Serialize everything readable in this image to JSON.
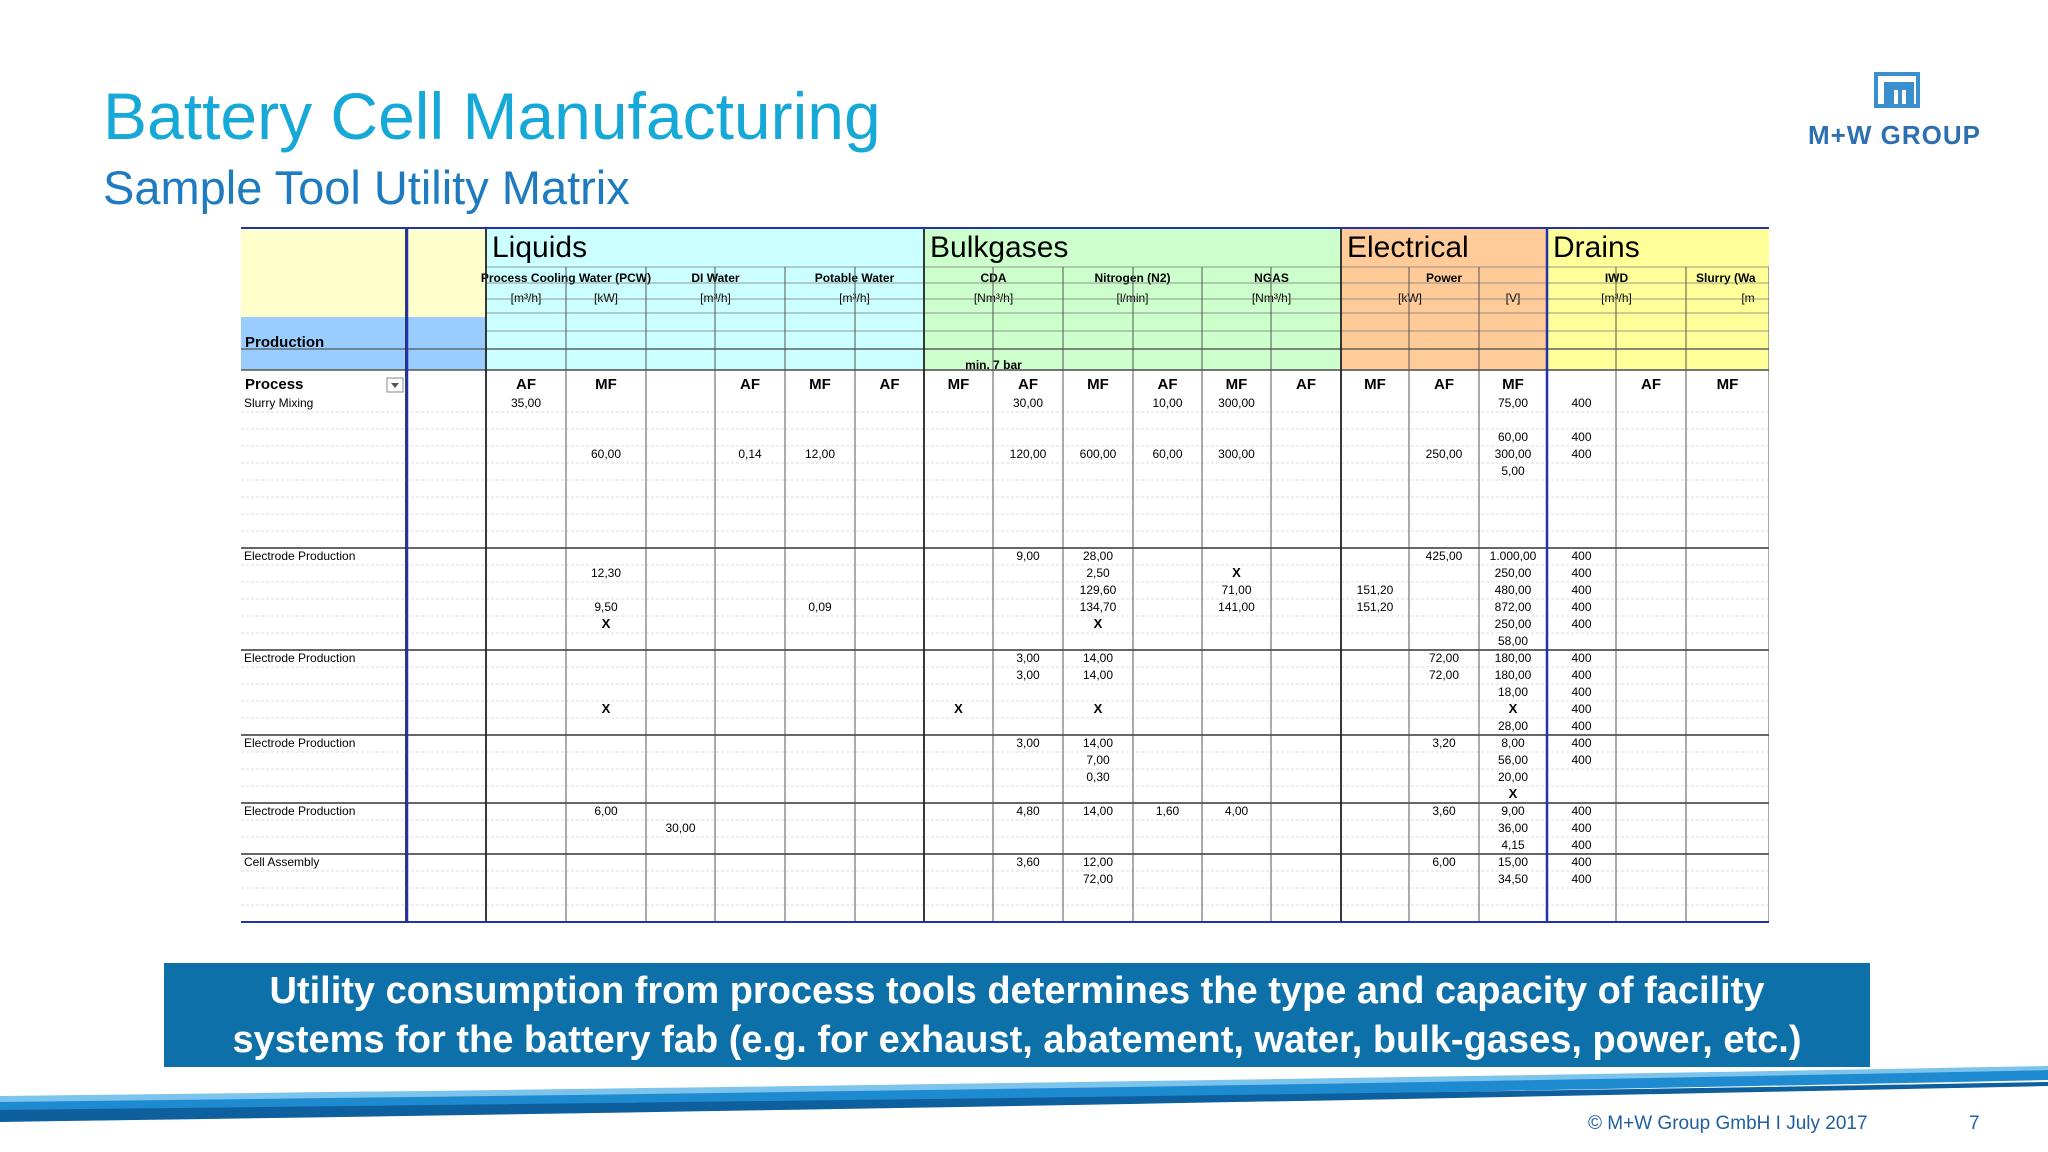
{
  "slide": {
    "title": "Battery Cell Manufacturing",
    "subtitle": "Sample Tool Utility Matrix",
    "logo_text": "M+W GROUP",
    "banner_line1": "Utility consumption from process tools determines the type and capacity of facility",
    "banner_line2": "systems for the battery fab (e.g. for exhaust, abatement, water, bulk-gases, power, etc.)",
    "footer": "© M+W Group GmbH I July 2017",
    "page": "7"
  },
  "colors": {
    "liquids": "#ccffff",
    "bulkgases": "#ccffcc",
    "electrical": "#ffcc99",
    "drains": "#ffff99",
    "corner": "#ffffcc",
    "process_label": "#99ccff"
  },
  "matrix": {
    "groups": [
      {
        "label": "Liquids",
        "start": 0,
        "end": 6,
        "color": "liquids"
      },
      {
        "label": "Bulkgases",
        "start": 6,
        "end": 12,
        "color": "bulkgases"
      },
      {
        "label": "Electrical",
        "start": 12,
        "end": 15,
        "color": "electrical"
      },
      {
        "label": "Drains",
        "start": 15,
        "end": 18,
        "color": "drains"
      }
    ],
    "subgroups": [
      {
        "label": "Process Cooling Water (PCW)",
        "start": 0,
        "end": 2
      },
      {
        "label": "DI Water",
        "start": 2,
        "end": 4
      },
      {
        "label": "Potable Water",
        "start": 4,
        "end": 6
      },
      {
        "label": "CDA",
        "start": 6,
        "end": 8
      },
      {
        "label": "Nitrogen (N2)",
        "start": 8,
        "end": 10
      },
      {
        "label": "NGAS",
        "start": 10,
        "end": 12
      },
      {
        "label": "Power",
        "start": 12,
        "end": 15
      },
      {
        "label": "IWD",
        "start": 15,
        "end": 17
      },
      {
        "label": "Slurry (Wa",
        "start": 17,
        "end": 18
      }
    ],
    "units": [
      {
        "label": "[m³/h]",
        "start": 0,
        "end": 1
      },
      {
        "label": "[kW]",
        "start": 1,
        "end": 2
      },
      {
        "label": "[m³/h]",
        "start": 2,
        "end": 4
      },
      {
        "label": "[m³/h]",
        "start": 4,
        "end": 6
      },
      {
        "label": "[Nm³/h]",
        "start": 6,
        "end": 8
      },
      {
        "label": "[l/min]",
        "start": 8,
        "end": 10
      },
      {
        "label": "[Nm³/h]",
        "start": 10,
        "end": 12
      },
      {
        "label": "[kW]",
        "start": 12,
        "end": 14
      },
      {
        "label": "[V]",
        "start": 14,
        "end": 15
      },
      {
        "label": "[m³/h]",
        "start": 15,
        "end": 17
      },
      {
        "label": "[m",
        "start": 17,
        "end": 18
      }
    ],
    "production_label": "Production",
    "process_label": "Process",
    "note": {
      "label": "min. 7 bar",
      "start": 6,
      "end": 8
    },
    "column_labels": [
      "AF",
      "MF",
      "",
      "AF",
      "MF",
      "AF",
      "MF",
      "AF",
      "MF",
      "AF",
      "MF",
      "AF",
      "MF",
      "AF",
      "MF",
      "",
      "AF",
      "MF",
      "AF"
    ],
    "rows": [
      {
        "process": "Slurry Mixing",
        "cells": [
          "35,00",
          "",
          "",
          "",
          "",
          "",
          "",
          "30,00",
          "",
          "10,00",
          "300,00",
          "",
          "",
          "",
          "75,00",
          "400",
          "",
          "",
          ""
        ]
      },
      {
        "process": "",
        "cells": [
          "",
          "",
          "",
          "",
          "",
          "",
          "",
          "",
          "",
          "",
          "",
          "",
          "",
          "",
          "",
          "",
          "",
          "",
          ""
        ]
      },
      {
        "process": "",
        "cells": [
          "",
          "",
          "",
          "",
          "",
          "",
          "",
          "",
          "",
          "",
          "",
          "",
          "",
          "",
          "60,00",
          "400",
          "",
          "",
          ""
        ]
      },
      {
        "process": "",
        "cells": [
          "",
          "60,00",
          "",
          "0,14",
          "12,00",
          "",
          "",
          "120,00",
          "600,00",
          "60,00",
          "300,00",
          "",
          "",
          "250,00",
          "300,00",
          "400",
          "",
          "",
          ""
        ]
      },
      {
        "process": "",
        "cells": [
          "",
          "",
          "",
          "",
          "",
          "",
          "",
          "",
          "",
          "",
          "",
          "",
          "",
          "",
          "5,00",
          "",
          "",
          "",
          ""
        ]
      },
      {
        "process": "",
        "cells": [
          "",
          "",
          "",
          "",
          "",
          "",
          "",
          "",
          "",
          "",
          "",
          "",
          "",
          "",
          "",
          "",
          "",
          "",
          ""
        ]
      },
      {
        "process": "",
        "cells": [
          "",
          "",
          "",
          "",
          "",
          "",
          "",
          "",
          "",
          "",
          "",
          "",
          "",
          "",
          "",
          "",
          "",
          "",
          ""
        ]
      },
      {
        "process": "",
        "cells": [
          "",
          "",
          "",
          "",
          "",
          "",
          "",
          "",
          "",
          "",
          "",
          "",
          "",
          "",
          "",
          "",
          "",
          "",
          ""
        ]
      },
      {
        "process": "",
        "cells": [
          "",
          "",
          "",
          "",
          "",
          "",
          "",
          "",
          "",
          "",
          "",
          "",
          "",
          "",
          "",
          "",
          "",
          "",
          ""
        ]
      },
      {
        "process": "Electrode Production",
        "cells": [
          "",
          "",
          "",
          "",
          "",
          "",
          "",
          "9,00",
          "28,00",
          "",
          "",
          "",
          "",
          "425,00",
          "1.000,00",
          "400",
          "",
          "",
          ""
        ]
      },
      {
        "process": "",
        "cells": [
          "",
          "12,30",
          "",
          "",
          "",
          "",
          "",
          "",
          "2,50",
          "",
          "X",
          "",
          "",
          "",
          "250,00",
          "400",
          "",
          "",
          ""
        ]
      },
      {
        "process": "",
        "cells": [
          "",
          "",
          "",
          "",
          "",
          "",
          "",
          "",
          "129,60",
          "",
          "71,00",
          "",
          "151,20",
          "",
          "480,00",
          "400",
          "",
          "",
          ""
        ]
      },
      {
        "process": "",
        "cells": [
          "",
          "9,50",
          "",
          "",
          "0,09",
          "",
          "",
          "",
          "134,70",
          "",
          "141,00",
          "",
          "151,20",
          "",
          "872,00",
          "400",
          "",
          "",
          ""
        ]
      },
      {
        "process": "",
        "cells": [
          "",
          "X",
          "",
          "",
          "",
          "",
          "",
          "",
          "X",
          "",
          "",
          "",
          "",
          "",
          "250,00",
          "400",
          "",
          "",
          ""
        ]
      },
      {
        "process": "",
        "cells": [
          "",
          "",
          "",
          "",
          "",
          "",
          "",
          "",
          "",
          "",
          "",
          "",
          "",
          "",
          "58,00",
          "",
          "",
          "",
          ""
        ]
      },
      {
        "process": "Electrode Production",
        "cells": [
          "",
          "",
          "",
          "",
          "",
          "",
          "",
          "3,00",
          "14,00",
          "",
          "",
          "",
          "",
          "72,00",
          "180,00",
          "400",
          "",
          "",
          ""
        ]
      },
      {
        "process": "",
        "cells": [
          "",
          "",
          "",
          "",
          "",
          "",
          "",
          "3,00",
          "14,00",
          "",
          "",
          "",
          "",
          "72,00",
          "180,00",
          "400",
          "",
          "",
          ""
        ]
      },
      {
        "process": "",
        "cells": [
          "",
          "",
          "",
          "",
          "",
          "",
          "",
          "",
          "",
          "",
          "",
          "",
          "",
          "",
          "18,00",
          "400",
          "",
          "",
          ""
        ]
      },
      {
        "process": "",
        "cells": [
          "",
          "X",
          "",
          "",
          "",
          "",
          "X",
          "",
          "X",
          "",
          "",
          "",
          "",
          "",
          "X",
          "400",
          "",
          "",
          ""
        ]
      },
      {
        "process": "",
        "cells": [
          "",
          "",
          "",
          "",
          "",
          "",
          "",
          "",
          "",
          "",
          "",
          "",
          "",
          "",
          "28,00",
          "400",
          "",
          "",
          ""
        ]
      },
      {
        "process": "Electrode Production",
        "cells": [
          "",
          "",
          "",
          "",
          "",
          "",
          "",
          "3,00",
          "14,00",
          "",
          "",
          "",
          "",
          "3,20",
          "8,00",
          "400",
          "",
          "",
          ""
        ]
      },
      {
        "process": "",
        "cells": [
          "",
          "",
          "",
          "",
          "",
          "",
          "",
          "",
          "7,00",
          "",
          "",
          "",
          "",
          "",
          "56,00",
          "400",
          "",
          "",
          ""
        ]
      },
      {
        "process": "",
        "cells": [
          "",
          "",
          "",
          "",
          "",
          "",
          "",
          "",
          "0,30",
          "",
          "",
          "",
          "",
          "",
          "20,00",
          "",
          "",
          "",
          ""
        ]
      },
      {
        "process": "",
        "cells": [
          "",
          "",
          "",
          "",
          "",
          "",
          "",
          "",
          "",
          "",
          "",
          "",
          "",
          "",
          "X",
          "",
          "",
          "",
          ""
        ]
      },
      {
        "process": "Electrode Production",
        "cells": [
          "",
          "6,00",
          "",
          "",
          "",
          "",
          "",
          "4,80",
          "14,00",
          "1,60",
          "4,00",
          "",
          "",
          "3,60",
          "9,00",
          "400",
          "",
          "",
          ""
        ]
      },
      {
        "process": "",
        "cells": [
          "",
          "",
          "30,00",
          "",
          "",
          "",
          "",
          "",
          "",
          "",
          "",
          "",
          "",
          "",
          "36,00",
          "400",
          "",
          "",
          ""
        ]
      },
      {
        "process": "",
        "cells": [
          "",
          "",
          "",
          "",
          "",
          "",
          "",
          "",
          "",
          "",
          "",
          "",
          "",
          "",
          "4,15",
          "400",
          "",
          "",
          ""
        ]
      },
      {
        "process": "Cell Assembly",
        "cells": [
          "",
          "",
          "",
          "",
          "",
          "",
          "",
          "3,60",
          "12,00",
          "",
          "",
          "",
          "",
          "6,00",
          "15,00",
          "400",
          "",
          "",
          ""
        ]
      },
      {
        "process": "",
        "cells": [
          "",
          "",
          "",
          "",
          "",
          "",
          "",
          "",
          "72,00",
          "",
          "",
          "",
          "",
          "",
          "34,50",
          "400",
          "",
          "",
          ""
        ]
      },
      {
        "process": "",
        "cells": [
          "",
          "",
          "",
          "",
          "",
          "",
          "",
          "",
          "",
          "",
          "",
          "",
          "",
          "",
          "",
          "",
          "",
          "",
          ""
        ]
      },
      {
        "process": "",
        "cells": [
          "",
          "",
          "",
          "",
          "",
          "",
          "",
          "",
          "",
          "",
          "",
          "",
          "",
          "",
          "",
          "",
          "",
          "",
          ""
        ]
      }
    ]
  }
}
